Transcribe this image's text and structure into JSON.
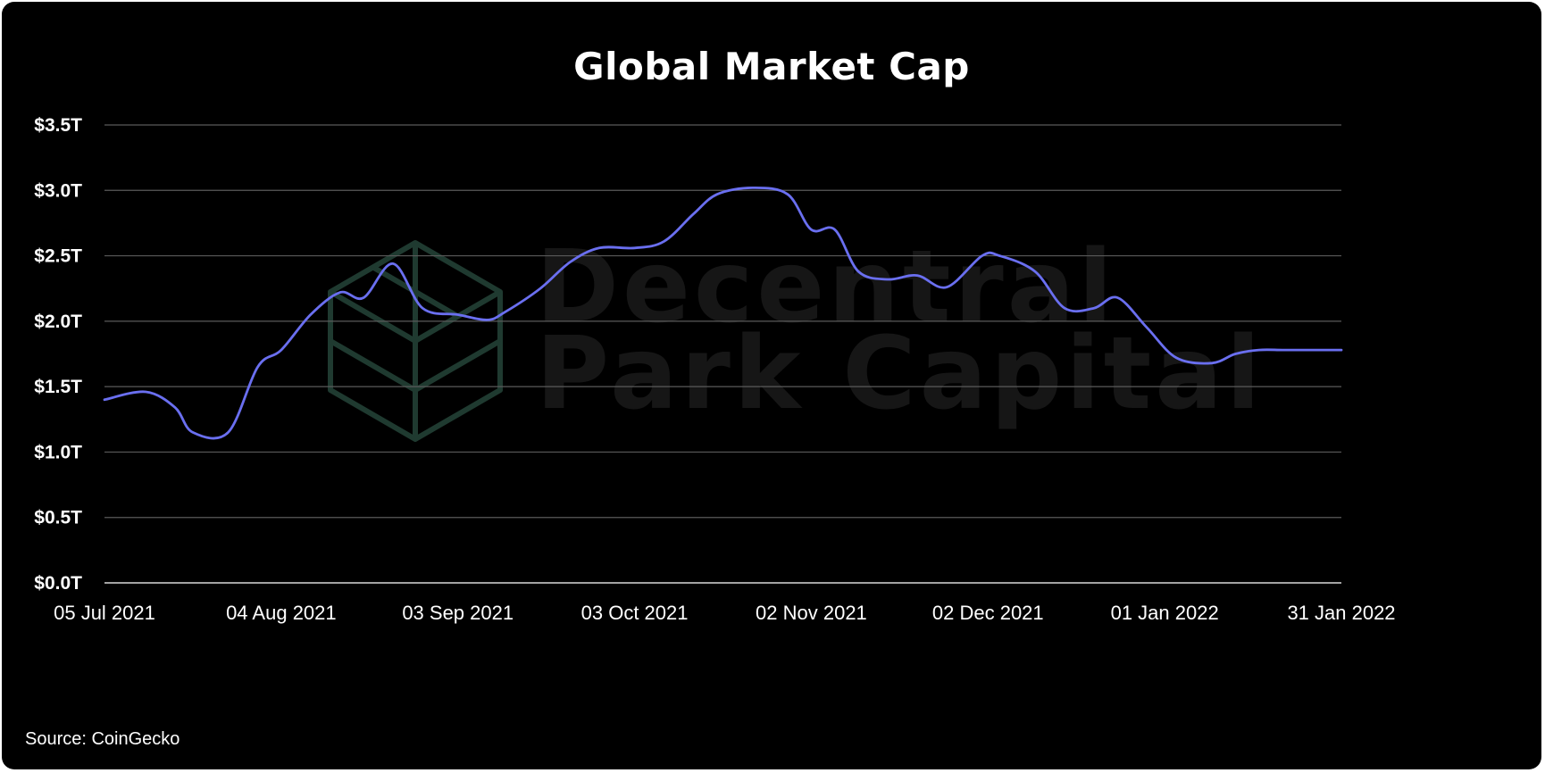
{
  "chart_data": {
    "type": "line",
    "title": "Global Market Cap",
    "source": "Source: CoinGecko",
    "watermark": {
      "line1": "Decentral",
      "line2": "Park Capital"
    },
    "y_ticks": [
      "$0.0T",
      "$0.5T",
      "$1.0T",
      "$1.5T",
      "$2.0T",
      "$2.5T",
      "$3.0T",
      "$3.5T"
    ],
    "x_ticks": [
      "05 Jul 2021",
      "04 Aug 2021",
      "03 Sep 2021",
      "03 Oct 2021",
      "02 Nov 2021",
      "02 Dec 2021",
      "01 Jan 2022",
      "31 Jan 2022"
    ],
    "ylim": [
      0,
      3.5
    ],
    "xlim": [
      "2021-07-05",
      "2022-01-31"
    ],
    "grid": true,
    "line_color": "#6a6ff0",
    "series": [
      {
        "x": [
          "2021-07-05",
          "2021-07-12",
          "2021-07-17",
          "2021-07-20",
          "2021-07-26",
          "2021-07-31",
          "2021-08-04",
          "2021-08-09",
          "2021-08-14",
          "2021-08-18",
          "2021-08-23",
          "2021-08-28",
          "2021-09-03",
          "2021-09-08",
          "2021-09-11",
          "2021-09-17",
          "2021-09-22",
          "2021-09-27",
          "2021-10-03",
          "2021-10-08",
          "2021-10-13",
          "2021-10-17",
          "2021-10-23",
          "2021-10-29",
          "2021-11-02",
          "2021-11-06",
          "2021-11-10",
          "2021-11-15",
          "2021-11-20",
          "2021-11-25",
          "2021-12-01",
          "2021-12-04",
          "2021-12-10",
          "2021-12-15",
          "2021-12-20",
          "2021-12-24",
          "2021-12-29",
          "2022-01-03",
          "2022-01-09",
          "2022-01-13",
          "2022-01-17",
          "2022-01-21",
          "2022-01-25",
          "2022-01-31"
        ],
        "y": [
          1.4,
          1.46,
          1.34,
          1.15,
          1.15,
          1.65,
          1.78,
          2.05,
          2.22,
          2.18,
          2.44,
          2.1,
          2.05,
          2.01,
          2.07,
          2.25,
          2.45,
          2.56,
          2.56,
          2.61,
          2.82,
          2.97,
          3.02,
          2.97,
          2.7,
          2.7,
          2.38,
          2.32,
          2.35,
          2.26,
          2.5,
          2.5,
          2.38,
          2.1,
          2.1,
          2.18,
          1.95,
          1.72,
          1.68,
          1.75,
          1.78,
          1.78,
          1.78,
          1.78
        ]
      }
    ]
  }
}
